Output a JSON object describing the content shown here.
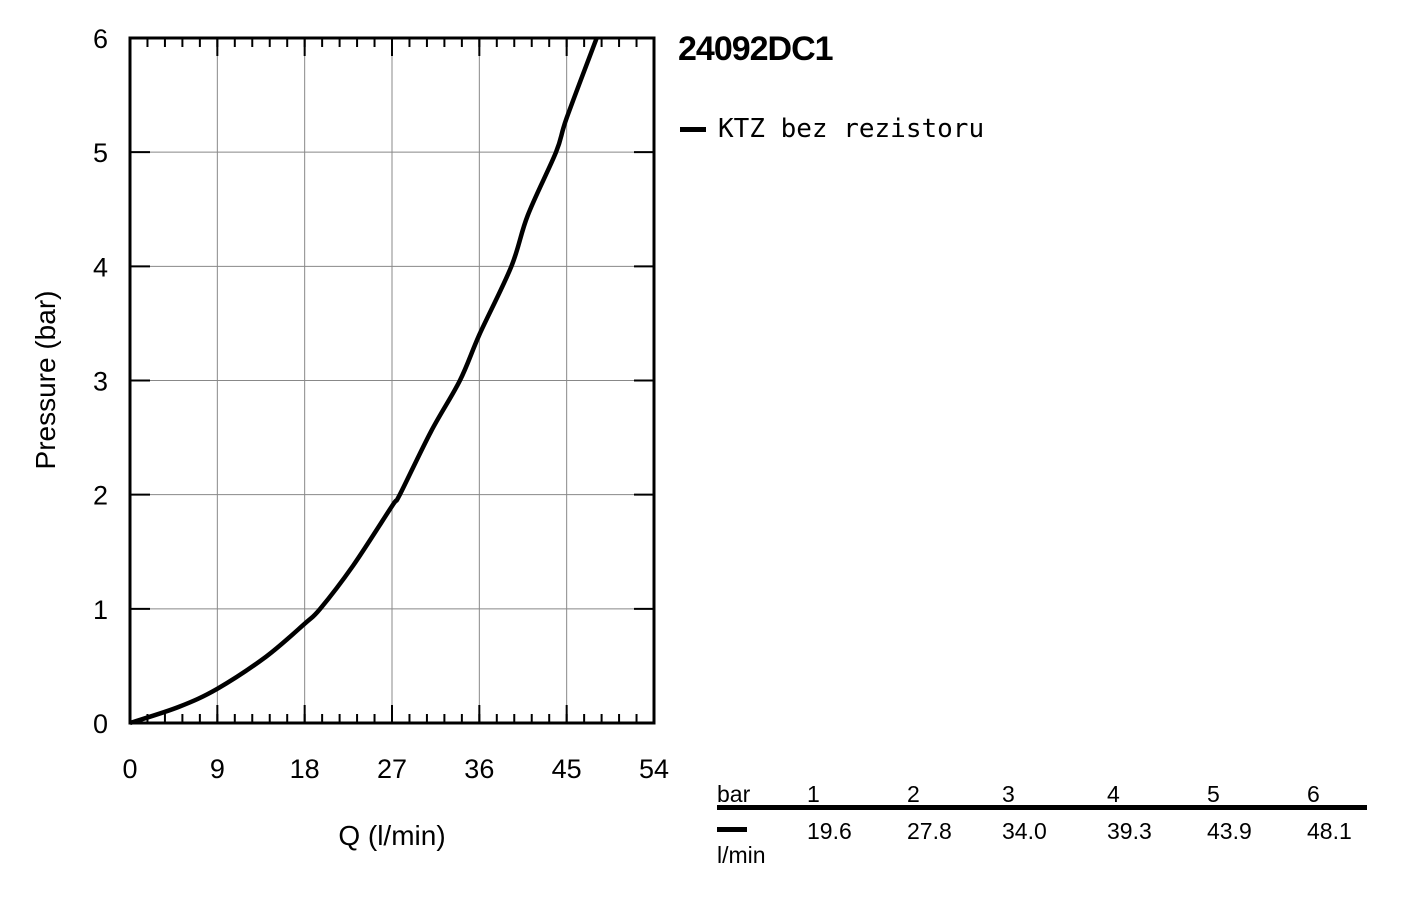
{
  "title": "24092DC1",
  "legend": {
    "label": "KTZ bez rezistoru"
  },
  "table": {
    "header_label": "bar",
    "columns": [
      "1",
      "2",
      "3",
      "4",
      "5",
      "6"
    ],
    "values": [
      "19.6",
      "27.8",
      "34.0",
      "39.3",
      "43.9",
      "48.1"
    ],
    "unit": "l/min"
  },
  "chart_data": {
    "type": "line",
    "xlabel": "Q (l/min)",
    "ylabel": "Pressure (bar)",
    "xlim": [
      0,
      54
    ],
    "ylim": [
      0,
      6
    ],
    "xticks": [
      0,
      9,
      18,
      27,
      36,
      45,
      54
    ],
    "yticks": [
      0,
      1,
      2,
      3,
      4,
      5,
      6
    ],
    "grid": true,
    "legend_position": "right",
    "series": [
      {
        "name": "KTZ bez rezistoru",
        "color": "#000000",
        "x": [
          0,
          5,
          9,
          14,
          18,
          19.6,
          23,
          27,
          27.8,
          31,
          34,
          36,
          39.3,
          41,
          43.9,
          45,
          48.1
        ],
        "y": [
          0,
          0.14,
          0.3,
          0.58,
          0.87,
          1,
          1.38,
          1.9,
          2,
          2.55,
          3,
          3.4,
          4,
          4.45,
          5,
          5.3,
          6
        ]
      }
    ]
  }
}
